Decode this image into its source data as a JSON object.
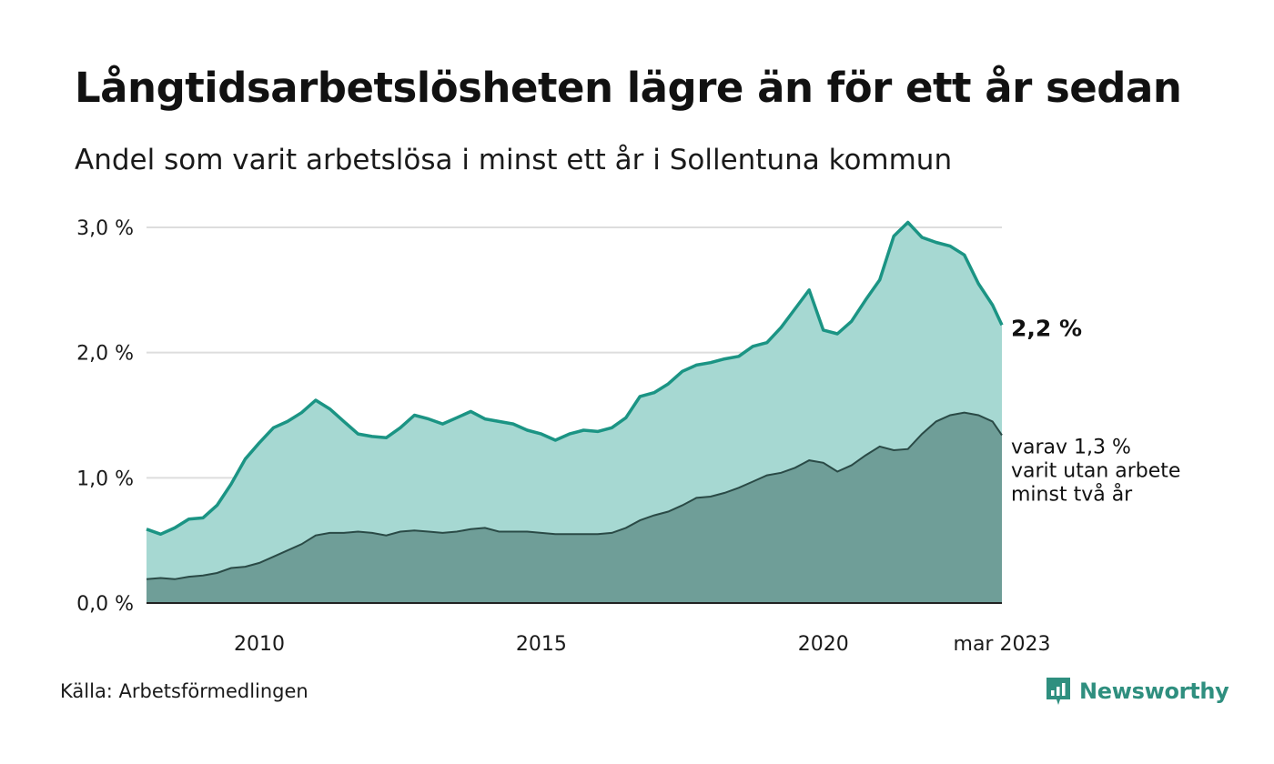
{
  "title": "Långtidsarbetslösheten lägre än för ett år sedan",
  "subtitle": "Andel som varit arbetslösa i minst ett år i Sollentuna kommun",
  "source": "Källa: Arbetsförmedlingen",
  "brand": "Newsworthy",
  "colors": {
    "total_fill": "#a6d8d2",
    "total_line": "#1b9484",
    "twoyear_fill": "#6f9e98",
    "twoyear_line": "#2a4a46",
    "grid": "#dddddd",
    "brand": "#2f8f7f"
  },
  "chart_data": {
    "type": "area",
    "x_unit": "month",
    "x_start": "2008-01",
    "x_end": "2023-03",
    "x_ticks": [
      {
        "label": "2010",
        "date": "2010-01"
      },
      {
        "label": "2015",
        "date": "2015-01"
      },
      {
        "label": "2020",
        "date": "2020-01"
      },
      {
        "label": "mar 2023",
        "date": "2023-03"
      }
    ],
    "ylim": [
      0,
      3.0
    ],
    "y_ticks": [
      {
        "value": 0,
        "label": "0,0 %"
      },
      {
        "value": 1,
        "label": "1,0 %"
      },
      {
        "value": 2,
        "label": "2,0 %"
      },
      {
        "value": 3,
        "label": "3,0 %"
      }
    ],
    "grid": true,
    "series": [
      {
        "key": "total",
        "end_label": "2,2 %",
        "points": [
          [
            "2008-01",
            0.59
          ],
          [
            "2008-04",
            0.55
          ],
          [
            "2008-07",
            0.6
          ],
          [
            "2008-10",
            0.67
          ],
          [
            "2009-01",
            0.68
          ],
          [
            "2009-04",
            0.78
          ],
          [
            "2009-07",
            0.95
          ],
          [
            "2009-10",
            1.15
          ],
          [
            "2010-01",
            1.28
          ],
          [
            "2010-04",
            1.4
          ],
          [
            "2010-07",
            1.45
          ],
          [
            "2010-10",
            1.52
          ],
          [
            "2011-01",
            1.62
          ],
          [
            "2011-04",
            1.55
          ],
          [
            "2011-07",
            1.45
          ],
          [
            "2011-10",
            1.35
          ],
          [
            "2012-01",
            1.33
          ],
          [
            "2012-04",
            1.32
          ],
          [
            "2012-07",
            1.4
          ],
          [
            "2012-10",
            1.5
          ],
          [
            "2013-01",
            1.47
          ],
          [
            "2013-04",
            1.43
          ],
          [
            "2013-07",
            1.48
          ],
          [
            "2013-10",
            1.53
          ],
          [
            "2014-01",
            1.47
          ],
          [
            "2014-04",
            1.45
          ],
          [
            "2014-07",
            1.43
          ],
          [
            "2014-10",
            1.38
          ],
          [
            "2015-01",
            1.35
          ],
          [
            "2015-04",
            1.3
          ],
          [
            "2015-07",
            1.35
          ],
          [
            "2015-10",
            1.38
          ],
          [
            "2016-01",
            1.37
          ],
          [
            "2016-04",
            1.4
          ],
          [
            "2016-07",
            1.48
          ],
          [
            "2016-10",
            1.65
          ],
          [
            "2017-01",
            1.68
          ],
          [
            "2017-04",
            1.75
          ],
          [
            "2017-07",
            1.85
          ],
          [
            "2017-10",
            1.9
          ],
          [
            "2018-01",
            1.92
          ],
          [
            "2018-04",
            1.95
          ],
          [
            "2018-07",
            1.97
          ],
          [
            "2018-10",
            2.05
          ],
          [
            "2019-01",
            2.08
          ],
          [
            "2019-04",
            2.2
          ],
          [
            "2019-07",
            2.35
          ],
          [
            "2019-10",
            2.5
          ],
          [
            "2020-01",
            2.18
          ],
          [
            "2020-04",
            2.15
          ],
          [
            "2020-07",
            2.25
          ],
          [
            "2020-10",
            2.42
          ],
          [
            "2021-01",
            2.58
          ],
          [
            "2021-04",
            2.93
          ],
          [
            "2021-07",
            3.04
          ],
          [
            "2021-10",
            2.92
          ],
          [
            "2022-01",
            2.88
          ],
          [
            "2022-04",
            2.85
          ],
          [
            "2022-07",
            2.78
          ],
          [
            "2022-10",
            2.55
          ],
          [
            "2023-01",
            2.38
          ],
          [
            "2023-03",
            2.22
          ]
        ]
      },
      {
        "key": "minst_tva_ar",
        "end_label": [
          "varav 1,3 %",
          "varit utan arbete",
          "minst två år"
        ],
        "points": [
          [
            "2008-01",
            0.19
          ],
          [
            "2008-04",
            0.2
          ],
          [
            "2008-07",
            0.19
          ],
          [
            "2008-10",
            0.21
          ],
          [
            "2009-01",
            0.22
          ],
          [
            "2009-04",
            0.24
          ],
          [
            "2009-07",
            0.28
          ],
          [
            "2009-10",
            0.29
          ],
          [
            "2010-01",
            0.32
          ],
          [
            "2010-04",
            0.37
          ],
          [
            "2010-07",
            0.42
          ],
          [
            "2010-10",
            0.47
          ],
          [
            "2011-01",
            0.54
          ],
          [
            "2011-04",
            0.56
          ],
          [
            "2011-07",
            0.56
          ],
          [
            "2011-10",
            0.57
          ],
          [
            "2012-01",
            0.56
          ],
          [
            "2012-04",
            0.54
          ],
          [
            "2012-07",
            0.57
          ],
          [
            "2012-10",
            0.58
          ],
          [
            "2013-01",
            0.57
          ],
          [
            "2013-04",
            0.56
          ],
          [
            "2013-07",
            0.57
          ],
          [
            "2013-10",
            0.59
          ],
          [
            "2014-01",
            0.6
          ],
          [
            "2014-04",
            0.57
          ],
          [
            "2014-07",
            0.57
          ],
          [
            "2014-10",
            0.57
          ],
          [
            "2015-01",
            0.56
          ],
          [
            "2015-04",
            0.55
          ],
          [
            "2015-07",
            0.55
          ],
          [
            "2015-10",
            0.55
          ],
          [
            "2016-01",
            0.55
          ],
          [
            "2016-04",
            0.56
          ],
          [
            "2016-07",
            0.6
          ],
          [
            "2016-10",
            0.66
          ],
          [
            "2017-01",
            0.7
          ],
          [
            "2017-04",
            0.73
          ],
          [
            "2017-07",
            0.78
          ],
          [
            "2017-10",
            0.84
          ],
          [
            "2018-01",
            0.85
          ],
          [
            "2018-04",
            0.88
          ],
          [
            "2018-07",
            0.92
          ],
          [
            "2018-10",
            0.97
          ],
          [
            "2019-01",
            1.02
          ],
          [
            "2019-04",
            1.04
          ],
          [
            "2019-07",
            1.08
          ],
          [
            "2019-10",
            1.14
          ],
          [
            "2020-01",
            1.12
          ],
          [
            "2020-04",
            1.05
          ],
          [
            "2020-07",
            1.1
          ],
          [
            "2020-10",
            1.18
          ],
          [
            "2021-01",
            1.25
          ],
          [
            "2021-04",
            1.22
          ],
          [
            "2021-07",
            1.23
          ],
          [
            "2021-10",
            1.35
          ],
          [
            "2022-01",
            1.45
          ],
          [
            "2022-04",
            1.5
          ],
          [
            "2022-07",
            1.52
          ],
          [
            "2022-10",
            1.5
          ],
          [
            "2023-01",
            1.45
          ],
          [
            "2023-03",
            1.34
          ]
        ]
      }
    ]
  }
}
